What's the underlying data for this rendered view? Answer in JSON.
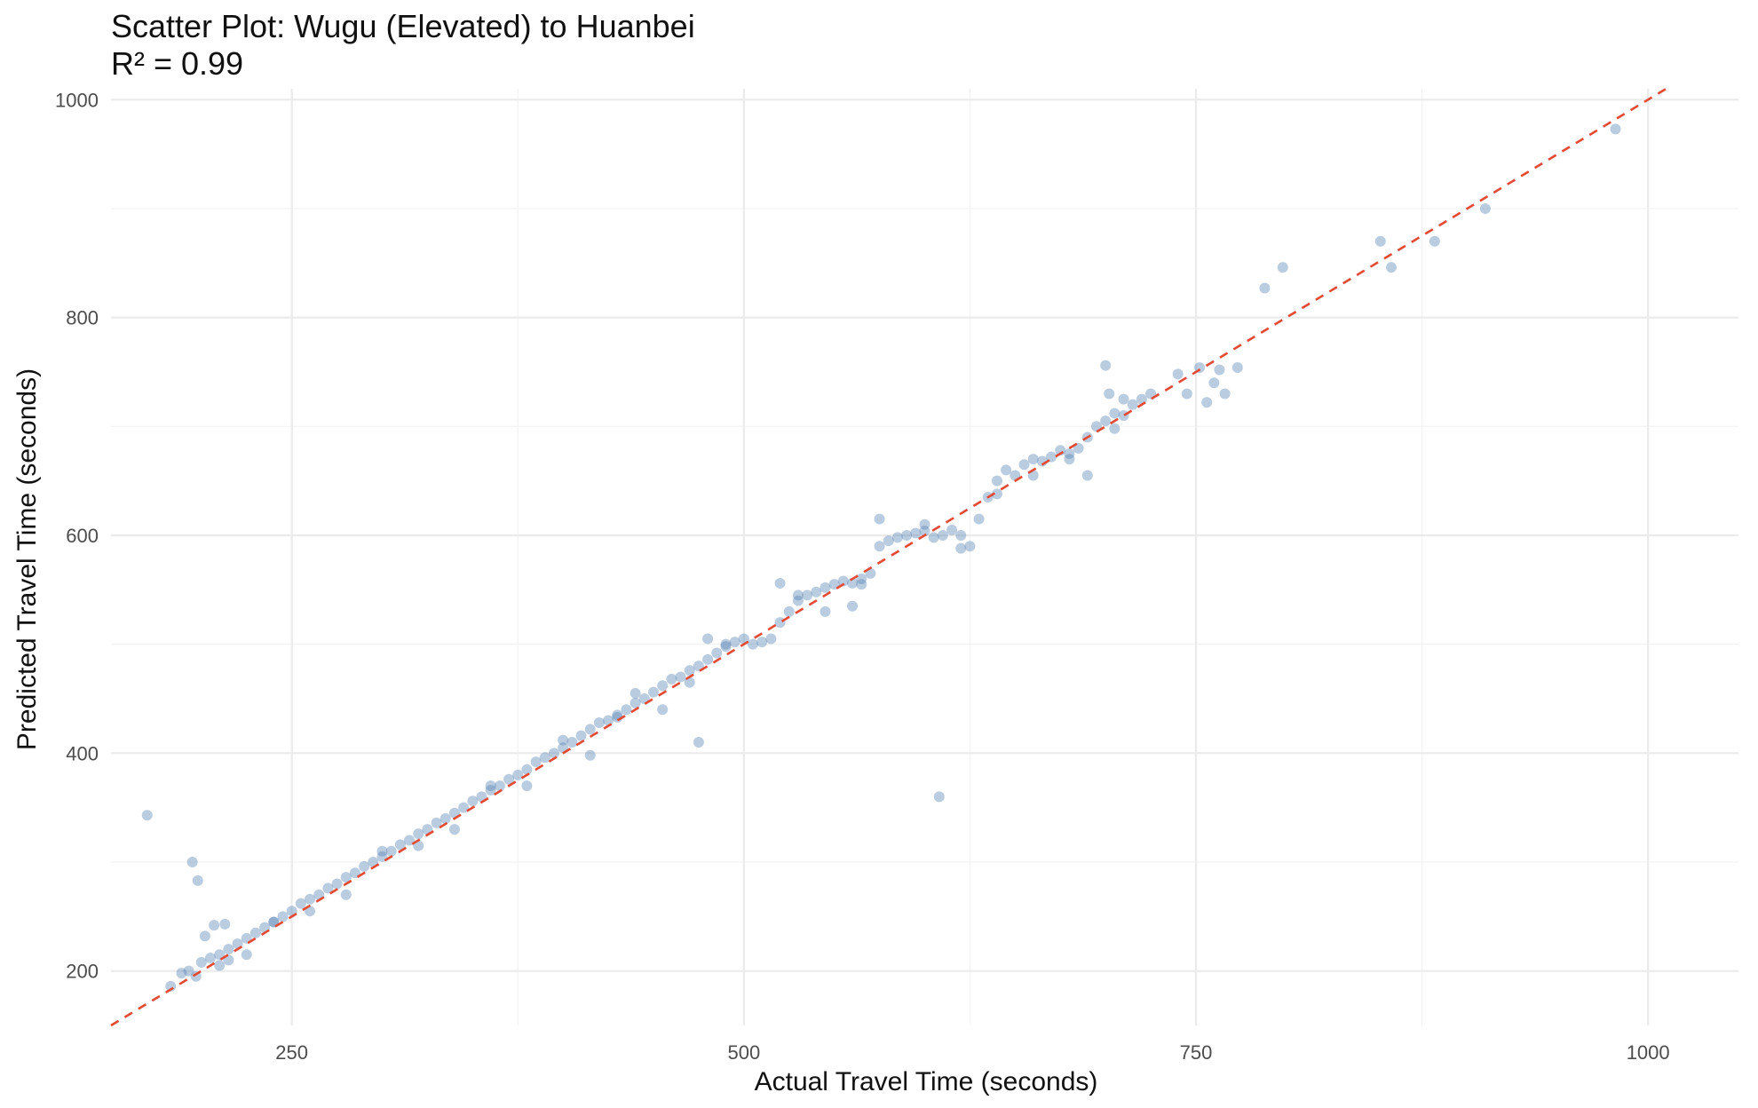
{
  "chart_data": {
    "type": "scatter",
    "title": "Scatter Plot: Wugu (Elevated) to Huanbei",
    "subtitle": "R² = 0.99",
    "xlabel": "Actual Travel Time (seconds)",
    "ylabel": "Predicted Travel Time (seconds)",
    "xlim": [
      150,
      1050
    ],
    "ylim": [
      150,
      1010
    ],
    "x_ticks": [
      250,
      500,
      750,
      1000
    ],
    "y_ticks": [
      200,
      400,
      600,
      800,
      1000
    ],
    "x_tick_labels": [
      "250",
      "500",
      "750",
      "1000"
    ],
    "y_tick_labels": [
      "200",
      "400",
      "600",
      "800",
      "1000"
    ],
    "grid": true,
    "point_color": "#5b86b5",
    "reference_line": {
      "type": "y=x",
      "color": "#e24a33",
      "style": "dashed"
    },
    "series": [
      {
        "points": [
          [
            170,
            343
          ],
          [
            195,
            300
          ],
          [
            198,
            283
          ],
          [
            183,
            186
          ],
          [
            189,
            198
          ],
          [
            193,
            200
          ],
          [
            197,
            195
          ],
          [
            202,
            232
          ],
          [
            207,
            242
          ],
          [
            213,
            243
          ],
          [
            200,
            208
          ],
          [
            205,
            212
          ],
          [
            210,
            215
          ],
          [
            215,
            220
          ],
          [
            220,
            225
          ],
          [
            225,
            230
          ],
          [
            230,
            235
          ],
          [
            235,
            240
          ],
          [
            240,
            245
          ],
          [
            245,
            250
          ],
          [
            250,
            255
          ],
          [
            255,
            262
          ],
          [
            260,
            266
          ],
          [
            265,
            270
          ],
          [
            270,
            276
          ],
          [
            275,
            280
          ],
          [
            280,
            286
          ],
          [
            285,
            290
          ],
          [
            290,
            296
          ],
          [
            295,
            300
          ],
          [
            300,
            305
          ],
          [
            305,
            310
          ],
          [
            310,
            316
          ],
          [
            315,
            320
          ],
          [
            320,
            326
          ],
          [
            325,
            330
          ],
          [
            330,
            336
          ],
          [
            335,
            340
          ],
          [
            340,
            345
          ],
          [
            345,
            350
          ],
          [
            350,
            356
          ],
          [
            355,
            360
          ],
          [
            360,
            366
          ],
          [
            365,
            370
          ],
          [
            370,
            376
          ],
          [
            375,
            380
          ],
          [
            380,
            385
          ],
          [
            385,
            392
          ],
          [
            390,
            396
          ],
          [
            395,
            400
          ],
          [
            400,
            405
          ],
          [
            405,
            410
          ],
          [
            410,
            416
          ],
          [
            415,
            422
          ],
          [
            420,
            428
          ],
          [
            425,
            430
          ],
          [
            430,
            435
          ],
          [
            435,
            440
          ],
          [
            440,
            446
          ],
          [
            445,
            450
          ],
          [
            450,
            456
          ],
          [
            455,
            462
          ],
          [
            460,
            468
          ],
          [
            465,
            470
          ],
          [
            470,
            476
          ],
          [
            475,
            480
          ],
          [
            480,
            486
          ],
          [
            485,
            492
          ],
          [
            490,
            498
          ],
          [
            495,
            502
          ],
          [
            500,
            505
          ],
          [
            505,
            500
          ],
          [
            510,
            502
          ],
          [
            515,
            505
          ],
          [
            520,
            520
          ],
          [
            525,
            530
          ],
          [
            530,
            540
          ],
          [
            535,
            545
          ],
          [
            540,
            548
          ],
          [
            545,
            552
          ],
          [
            550,
            555
          ],
          [
            555,
            558
          ],
          [
            560,
            556
          ],
          [
            565,
            560
          ],
          [
            570,
            565
          ],
          [
            575,
            590
          ],
          [
            580,
            595
          ],
          [
            585,
            598
          ],
          [
            590,
            600
          ],
          [
            595,
            602
          ],
          [
            600,
            604
          ],
          [
            605,
            598
          ],
          [
            610,
            600
          ],
          [
            615,
            605
          ],
          [
            620,
            600
          ],
          [
            625,
            590
          ],
          [
            630,
            615
          ],
          [
            635,
            635
          ],
          [
            640,
            650
          ],
          [
            645,
            660
          ],
          [
            650,
            655
          ],
          [
            655,
            665
          ],
          [
            660,
            670
          ],
          [
            665,
            668
          ],
          [
            670,
            672
          ],
          [
            675,
            678
          ],
          [
            680,
            675
          ],
          [
            685,
            680
          ],
          [
            690,
            690
          ],
          [
            695,
            700
          ],
          [
            700,
            705
          ],
          [
            705,
            712
          ],
          [
            710,
            710
          ],
          [
            715,
            720
          ],
          [
            720,
            725
          ],
          [
            725,
            730
          ],
          [
            430,
            433
          ],
          [
            475,
            410
          ],
          [
            608,
            360
          ],
          [
            575,
            615
          ],
          [
            600,
            610
          ],
          [
            620,
            588
          ],
          [
            640,
            638
          ],
          [
            660,
            655
          ],
          [
            680,
            670
          ],
          [
            690,
            655
          ],
          [
            700,
            756
          ],
          [
            702,
            730
          ],
          [
            705,
            698
          ],
          [
            710,
            725
          ],
          [
            740,
            748
          ],
          [
            745,
            730
          ],
          [
            752,
            754
          ],
          [
            756,
            722
          ],
          [
            760,
            740
          ],
          [
            763,
            752
          ],
          [
            766,
            730
          ],
          [
            773,
            754
          ],
          [
            788,
            827
          ],
          [
            798,
            846
          ],
          [
            852,
            870
          ],
          [
            858,
            846
          ],
          [
            882,
            870
          ],
          [
            910,
            900
          ],
          [
            982,
            973
          ],
          [
            520,
            556
          ],
          [
            530,
            545
          ],
          [
            545,
            530
          ],
          [
            560,
            535
          ],
          [
            565,
            555
          ],
          [
            480,
            505
          ],
          [
            490,
            500
          ],
          [
            470,
            465
          ],
          [
            455,
            440
          ],
          [
            440,
            455
          ],
          [
            415,
            398
          ],
          [
            400,
            412
          ],
          [
            380,
            370
          ],
          [
            360,
            370
          ],
          [
            340,
            330
          ],
          [
            320,
            315
          ],
          [
            300,
            310
          ],
          [
            280,
            270
          ],
          [
            260,
            255
          ],
          [
            240,
            245
          ],
          [
            225,
            215
          ],
          [
            215,
            210
          ],
          [
            210,
            205
          ]
        ]
      }
    ]
  }
}
